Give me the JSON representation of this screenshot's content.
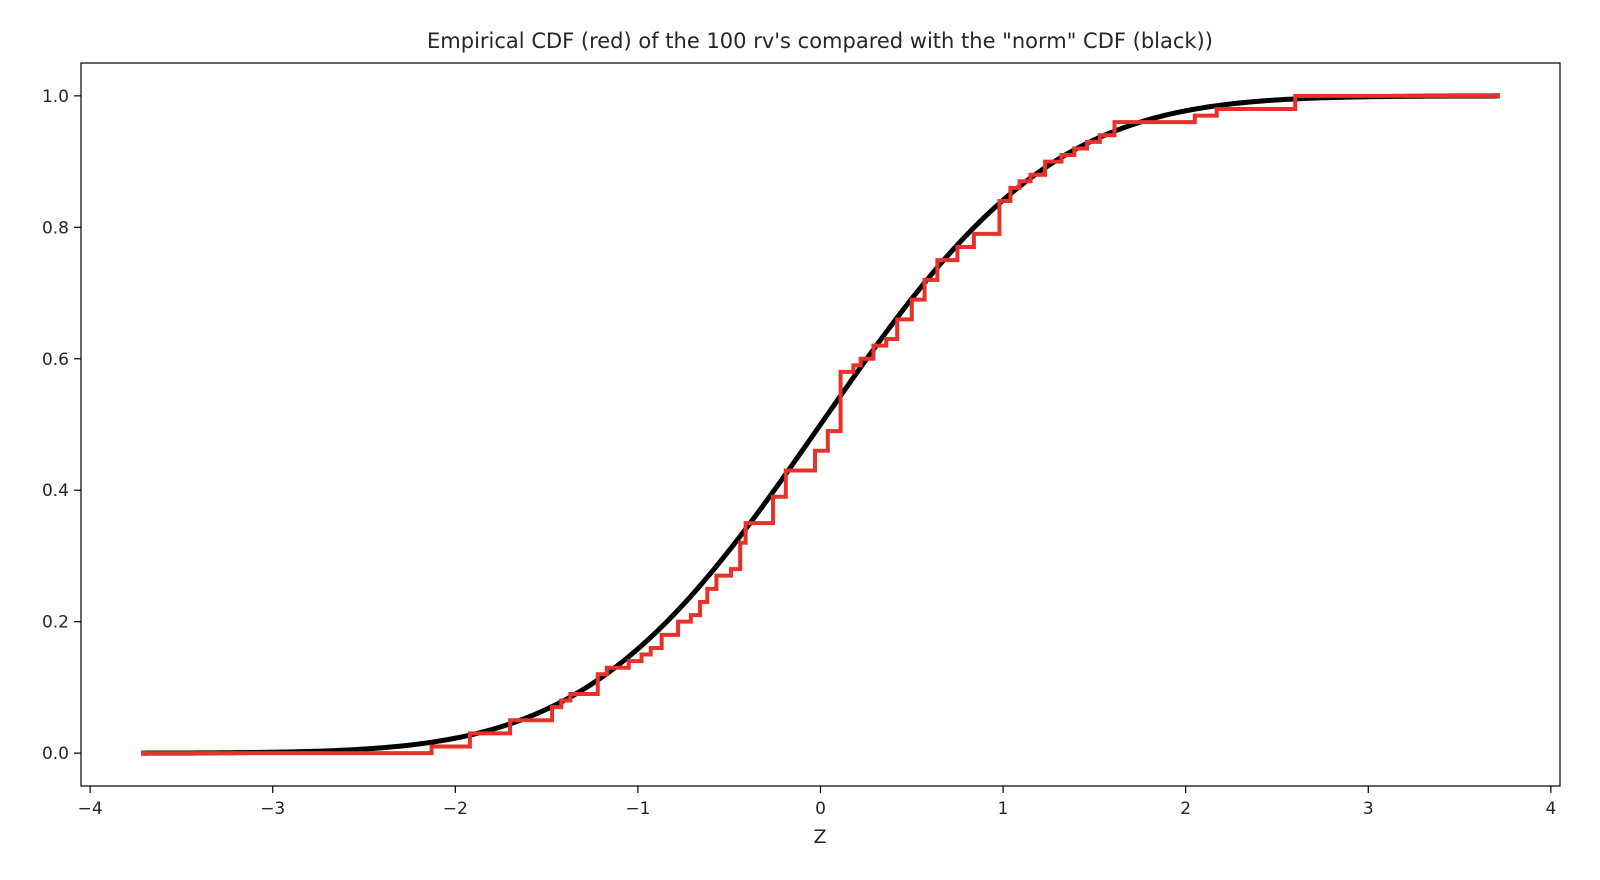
{
  "chart_data": {
    "type": "line",
    "title": "Empirical CDF (red) of the 100 rv's compared with the \"norm\" CDF (black))",
    "xlabel": "Z",
    "ylabel": "",
    "xlim": [
      -4.05,
      4.05
    ],
    "ylim": [
      -0.05,
      1.05
    ],
    "x_ticks": [
      -4,
      -3,
      -2,
      -1,
      0,
      1,
      2,
      3,
      4
    ],
    "x_tick_labels": [
      "−4",
      "−3",
      "−2",
      "−1",
      "0",
      "1",
      "2",
      "3",
      "4"
    ],
    "y_ticks": [
      0.0,
      0.2,
      0.4,
      0.6,
      0.8,
      1.0
    ],
    "y_tick_labels": [
      "0.0",
      "0.2",
      "0.4",
      "0.6",
      "0.8",
      "1.0"
    ],
    "grid": false,
    "legend": "none",
    "series": [
      {
        "kind": "normal-cdf",
        "color": "#000000",
        "x_range": [
          -3.72,
          3.72
        ]
      },
      {
        "kind": "step",
        "color": "#e8312a",
        "x": [
          -3.72,
          -2.13,
          -1.92,
          -1.7,
          -1.47,
          -1.42,
          -1.37,
          -1.22,
          -1.17,
          -1.05,
          -0.98,
          -0.93,
          -0.87,
          -0.78,
          -0.71,
          -0.66,
          -0.62,
          -0.57,
          -0.49,
          -0.44,
          -0.41,
          -0.26,
          -0.19,
          -0.03,
          0.04,
          0.11,
          0.18,
          0.22,
          0.29,
          0.36,
          0.42,
          0.5,
          0.57,
          0.64,
          0.75,
          0.84,
          0.98,
          1.04,
          1.09,
          1.15,
          1.23,
          1.32,
          1.39,
          1.46,
          1.53,
          1.61,
          1.87,
          2.05,
          2.17,
          2.37,
          2.6,
          3.72
        ],
        "y": [
          0.0,
          0.01,
          0.03,
          0.05,
          0.07,
          0.08,
          0.09,
          0.12,
          0.13,
          0.14,
          0.15,
          0.16,
          0.18,
          0.2,
          0.21,
          0.23,
          0.25,
          0.27,
          0.28,
          0.32,
          0.35,
          0.39,
          0.43,
          0.46,
          0.49,
          0.58,
          0.59,
          0.6,
          0.62,
          0.63,
          0.66,
          0.69,
          0.72,
          0.75,
          0.77,
          0.79,
          0.84,
          0.86,
          0.87,
          0.88,
          0.9,
          0.91,
          0.92,
          0.93,
          0.94,
          0.96,
          0.96,
          0.97,
          0.98,
          0.98,
          1.0,
          1.0
        ]
      }
    ]
  }
}
